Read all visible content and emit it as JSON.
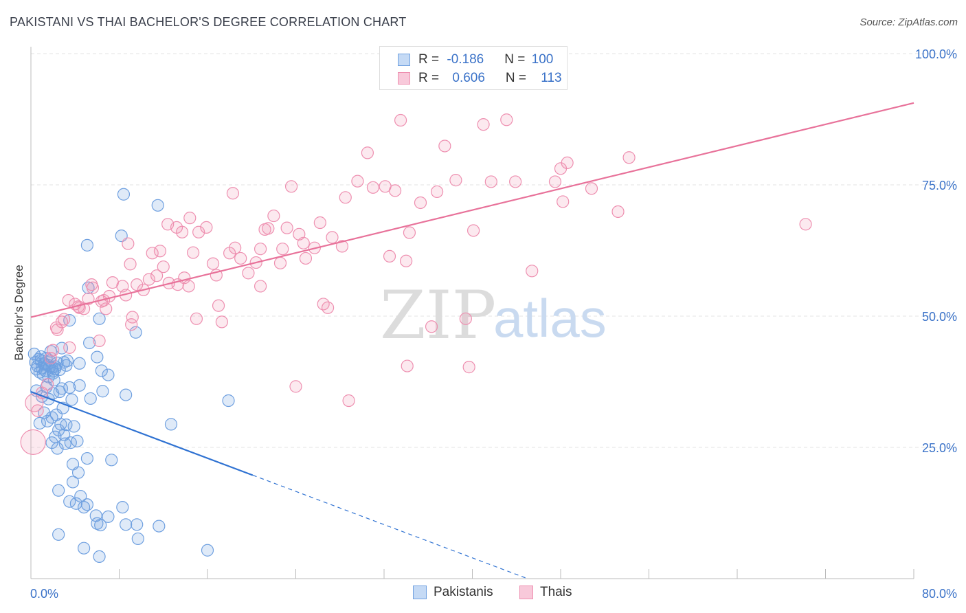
{
  "title": "PAKISTANI VS THAI BACHELOR'S DEGREE CORRELATION CHART",
  "source": "Source: ZipAtlas.com",
  "watermark": {
    "zip": "ZIP",
    "atlas": "atlas"
  },
  "colors": {
    "blue": "#6fa0e0",
    "blue_line": "#2f72d2",
    "pink": "#ee8fb0",
    "pink_line": "#e8729a",
    "tick_text": "#3a72c8",
    "grid": "#e3e3e3"
  },
  "legend_top": {
    "rows": [
      {
        "r_label": "R = ",
        "r_value": "-0.186",
        "n_label": "N = ",
        "n_value": "100"
      },
      {
        "r_label": "R = ",
        "r_value": "0.606",
        "n_label": "N = ",
        "n_value": "113"
      }
    ]
  },
  "legend_bottom": {
    "items": [
      "Pakistanis",
      "Thais"
    ]
  },
  "chart_data": {
    "type": "scatter",
    "title": "PAKISTANI VS THAI BACHELOR'S DEGREE CORRELATION CHART",
    "xlabel": "",
    "ylabel": "Bachelor's Degree",
    "xlim": [
      0,
      80
    ],
    "ylim": [
      0,
      100
    ],
    "x_tick_labels": [
      "0.0%",
      "80.0%"
    ],
    "y_tick_labels": [
      "25.0%",
      "50.0%",
      "75.0%",
      "100.0%"
    ],
    "y_ticks": [
      25,
      50,
      75,
      100
    ],
    "grid": true,
    "legend_placement": "bottom",
    "series": [
      {
        "name": "Pakistanis",
        "color": "#6fa0e0",
        "trend": {
          "x0": 0,
          "y0": 35.6,
          "x1": 20.1,
          "y1": 19.7,
          "dash_to_x": 45.0,
          "dash_to_y": 0.0
        },
        "points": [
          [
            0.3,
            42.8
          ],
          [
            0.4,
            41.2
          ],
          [
            0.5,
            39.9
          ],
          [
            0.6,
            40.5
          ],
          [
            0.7,
            41.8
          ],
          [
            0.8,
            39.3
          ],
          [
            0.9,
            42.3
          ],
          [
            1.0,
            40.1
          ],
          [
            1.1,
            38.9
          ],
          [
            1.2,
            41.0
          ],
          [
            1.3,
            39.6
          ],
          [
            1.4,
            42.0
          ],
          [
            1.5,
            40.7
          ],
          [
            1.6,
            38.4
          ],
          [
            1.7,
            41.5
          ],
          [
            1.8,
            43.3
          ],
          [
            1.9,
            40.2
          ],
          [
            2.0,
            39.1
          ],
          [
            2.1,
            37.8
          ],
          [
            2.2,
            40.0
          ],
          [
            2.4,
            41.1
          ],
          [
            2.6,
            39.8
          ],
          [
            2.8,
            43.9
          ],
          [
            3.0,
            41.2
          ],
          [
            3.2,
            40.6
          ],
          [
            0.5,
            35.8
          ],
          [
            1.0,
            34.7
          ],
          [
            1.4,
            36.5
          ],
          [
            1.6,
            34.2
          ],
          [
            2.0,
            35.3
          ],
          [
            2.6,
            35.6
          ],
          [
            3.5,
            36.4
          ],
          [
            3.7,
            34.1
          ],
          [
            0.8,
            29.6
          ],
          [
            1.2,
            31.6
          ],
          [
            1.5,
            30.0
          ],
          [
            1.9,
            30.7
          ],
          [
            2.3,
            31.2
          ],
          [
            2.7,
            29.4
          ],
          [
            3.2,
            29.3
          ],
          [
            3.9,
            29.0
          ],
          [
            2.2,
            27.0
          ],
          [
            2.5,
            28.3
          ],
          [
            3.0,
            27.4
          ],
          [
            1.9,
            25.9
          ],
          [
            2.4,
            24.8
          ],
          [
            3.1,
            25.7
          ],
          [
            3.6,
            25.9
          ],
          [
            4.2,
            26.2
          ],
          [
            3.8,
            21.8
          ],
          [
            4.3,
            20.2
          ],
          [
            5.1,
            22.9
          ],
          [
            7.3,
            22.6
          ],
          [
            2.5,
            16.8
          ],
          [
            3.5,
            14.7
          ],
          [
            4.1,
            14.3
          ],
          [
            4.5,
            15.7
          ],
          [
            3.8,
            18.4
          ],
          [
            4.8,
            13.6
          ],
          [
            5.1,
            14.1
          ],
          [
            5.9,
            12.0
          ],
          [
            6.3,
            10.2
          ],
          [
            6.0,
            10.5
          ],
          [
            7.0,
            11.8
          ],
          [
            8.3,
            13.6
          ],
          [
            8.6,
            10.3
          ],
          [
            9.6,
            10.3
          ],
          [
            11.6,
            10.0
          ],
          [
            2.5,
            8.4
          ],
          [
            4.8,
            5.8
          ],
          [
            6.2,
            4.2
          ],
          [
            9.7,
            7.6
          ],
          [
            16.0,
            5.4
          ],
          [
            5.3,
            44.9
          ],
          [
            6.0,
            42.2
          ],
          [
            3.5,
            49.2
          ],
          [
            6.2,
            49.5
          ],
          [
            5.2,
            55.4
          ],
          [
            6.4,
            39.6
          ],
          [
            7.0,
            38.8
          ],
          [
            6.5,
            35.7
          ],
          [
            8.6,
            35.0
          ],
          [
            5.4,
            34.3
          ],
          [
            4.4,
            41.0
          ],
          [
            2.9,
            32.5
          ],
          [
            4.4,
            36.8
          ],
          [
            2.8,
            36.2
          ],
          [
            8.2,
            65.3
          ],
          [
            5.1,
            63.5
          ],
          [
            8.4,
            73.2
          ],
          [
            11.5,
            71.1
          ],
          [
            9.5,
            46.9
          ],
          [
            12.7,
            29.4
          ],
          [
            17.9,
            33.9
          ],
          [
            2.2,
            40.4
          ],
          [
            3.3,
            41.5
          ],
          [
            1.2,
            40.8
          ],
          [
            0.9,
            41.6
          ],
          [
            2.0,
            39.5
          ],
          [
            1.7,
            40.3
          ]
        ]
      },
      {
        "name": "Thais",
        "color": "#ee8fb0",
        "trend": {
          "x0": 0,
          "y0": 49.8,
          "x1": 80,
          "y1": 90.6
        },
        "points": [
          [
            0.2,
            26.0
          ],
          [
            0.3,
            33.5
          ],
          [
            0.6,
            32.0
          ],
          [
            1.0,
            35.4
          ],
          [
            1.5,
            37.0
          ],
          [
            1.8,
            42.0
          ],
          [
            2.0,
            43.5
          ],
          [
            2.3,
            47.8
          ],
          [
            2.8,
            48.9
          ],
          [
            3.5,
            44.0
          ],
          [
            3.4,
            53.0
          ],
          [
            4.0,
            52.3
          ],
          [
            4.3,
            51.8
          ],
          [
            4.8,
            51.4
          ],
          [
            5.2,
            53.3
          ],
          [
            5.6,
            55.4
          ],
          [
            6.4,
            52.8
          ],
          [
            6.6,
            53.0
          ],
          [
            7.1,
            53.8
          ],
          [
            7.4,
            56.4
          ],
          [
            8.3,
            55.7
          ],
          [
            8.6,
            54.0
          ],
          [
            9.0,
            59.9
          ],
          [
            9.6,
            56.0
          ],
          [
            9.2,
            49.8
          ],
          [
            10.2,
            55.0
          ],
          [
            10.7,
            57.0
          ],
          [
            11.4,
            57.7
          ],
          [
            12.0,
            59.4
          ],
          [
            12.5,
            56.3
          ],
          [
            13.3,
            56.0
          ],
          [
            13.9,
            57.3
          ],
          [
            14.3,
            55.7
          ],
          [
            11.0,
            62.0
          ],
          [
            11.7,
            62.4
          ],
          [
            12.4,
            67.5
          ],
          [
            13.2,
            66.9
          ],
          [
            13.7,
            66.0
          ],
          [
            14.4,
            68.7
          ],
          [
            15.2,
            66.0
          ],
          [
            15.9,
            66.9
          ],
          [
            16.5,
            60.0
          ],
          [
            16.8,
            57.8
          ],
          [
            17.0,
            52.0
          ],
          [
            15.0,
            49.5
          ],
          [
            18.0,
            62.0
          ],
          [
            18.5,
            63.0
          ],
          [
            19.0,
            61.0
          ],
          [
            19.7,
            58.2
          ],
          [
            20.4,
            60.2
          ],
          [
            20.8,
            62.8
          ],
          [
            21.2,
            66.5
          ],
          [
            21.5,
            66.7
          ],
          [
            22.0,
            69.1
          ],
          [
            22.8,
            62.8
          ],
          [
            22.6,
            60.1
          ],
          [
            23.2,
            66.8
          ],
          [
            24.3,
            65.6
          ],
          [
            24.7,
            63.9
          ],
          [
            24.9,
            61.0
          ],
          [
            25.7,
            63.0
          ],
          [
            26.2,
            67.8
          ],
          [
            26.9,
            51.6
          ],
          [
            27.3,
            65.0
          ],
          [
            28.2,
            63.3
          ],
          [
            28.5,
            72.6
          ],
          [
            29.6,
            75.7
          ],
          [
            30.5,
            81.1
          ],
          [
            31.0,
            74.5
          ],
          [
            32.1,
            74.7
          ],
          [
            32.5,
            61.4
          ],
          [
            33.0,
            73.9
          ],
          [
            33.5,
            87.3
          ],
          [
            34.0,
            60.5
          ],
          [
            34.3,
            65.9
          ],
          [
            35.3,
            71.6
          ],
          [
            36.3,
            48.0
          ],
          [
            36.8,
            73.7
          ],
          [
            37.5,
            82.4
          ],
          [
            38.5,
            75.9
          ],
          [
            39.4,
            49.5
          ],
          [
            40.1,
            66.3
          ],
          [
            41.0,
            86.5
          ],
          [
            41.7,
            75.6
          ],
          [
            43.1,
            87.4
          ],
          [
            43.9,
            75.6
          ],
          [
            45.4,
            58.6
          ],
          [
            47.5,
            75.6
          ],
          [
            48.0,
            78.1
          ],
          [
            48.2,
            71.8
          ],
          [
            48.6,
            79.2
          ],
          [
            50.8,
            74.3
          ],
          [
            53.2,
            69.9
          ],
          [
            54.2,
            80.2
          ],
          [
            70.2,
            67.5
          ],
          [
            8.8,
            63.8
          ],
          [
            5.5,
            56.0
          ],
          [
            6.8,
            51.4
          ],
          [
            6.2,
            45.3
          ],
          [
            9.1,
            48.4
          ],
          [
            17.3,
            48.9
          ],
          [
            18.3,
            73.4
          ],
          [
            23.6,
            74.7
          ],
          [
            24.0,
            36.6
          ],
          [
            28.8,
            33.9
          ],
          [
            34.1,
            40.5
          ],
          [
            39.7,
            40.3
          ],
          [
            26.5,
            52.3
          ],
          [
            20.8,
            55.7
          ],
          [
            14.7,
            62.1
          ],
          [
            3.0,
            49.4
          ],
          [
            4.4,
            51.6
          ],
          [
            2.4,
            47.4
          ]
        ]
      }
    ]
  }
}
